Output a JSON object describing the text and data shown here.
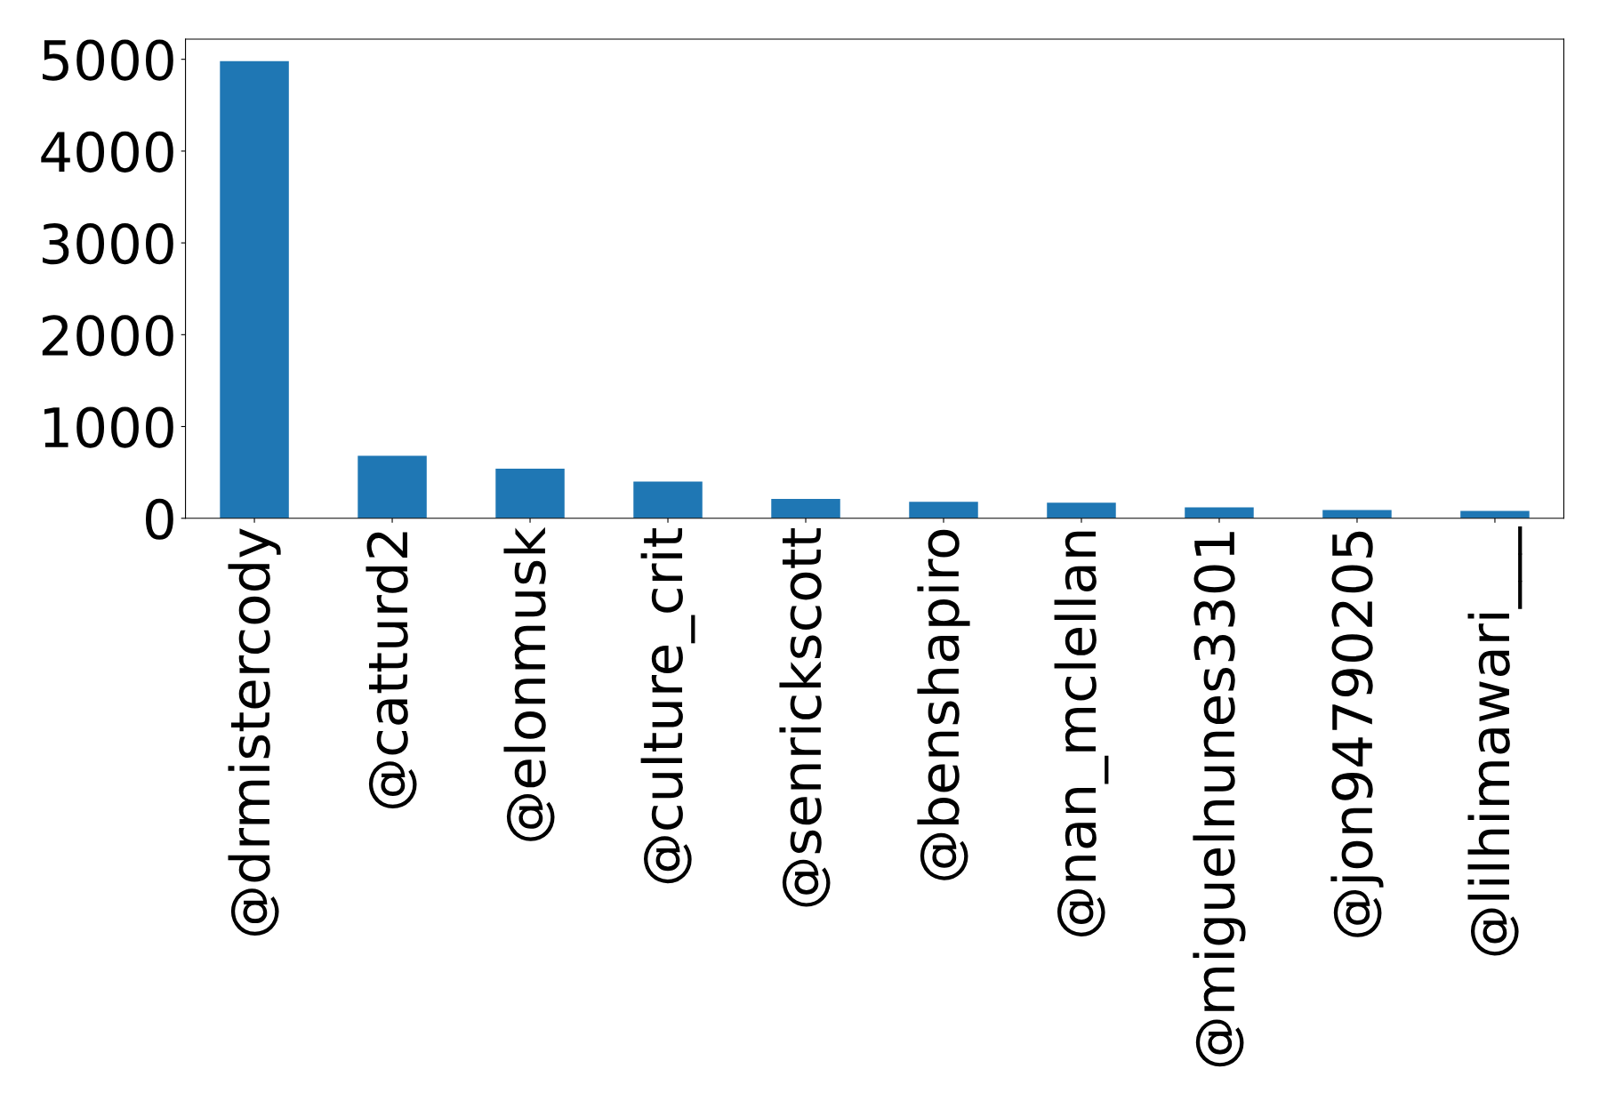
{
  "chart_data": {
    "type": "bar",
    "categories": [
      "@drmistercody",
      "@catturd2",
      "@elonmusk",
      "@culture_crit",
      "@senrickscott",
      "@benshapiro",
      "@nan_mclellan",
      "@miguelnunes3301",
      "@jon94790205",
      "@lilhimawari___"
    ],
    "values": [
      4980,
      680,
      540,
      400,
      210,
      180,
      170,
      120,
      90,
      80
    ],
    "color": "#1f77b4",
    "ylim": [
      0,
      5220
    ],
    "yticks": [
      0,
      1000,
      2000,
      3000,
      4000,
      5000
    ],
    "grid": false
  }
}
